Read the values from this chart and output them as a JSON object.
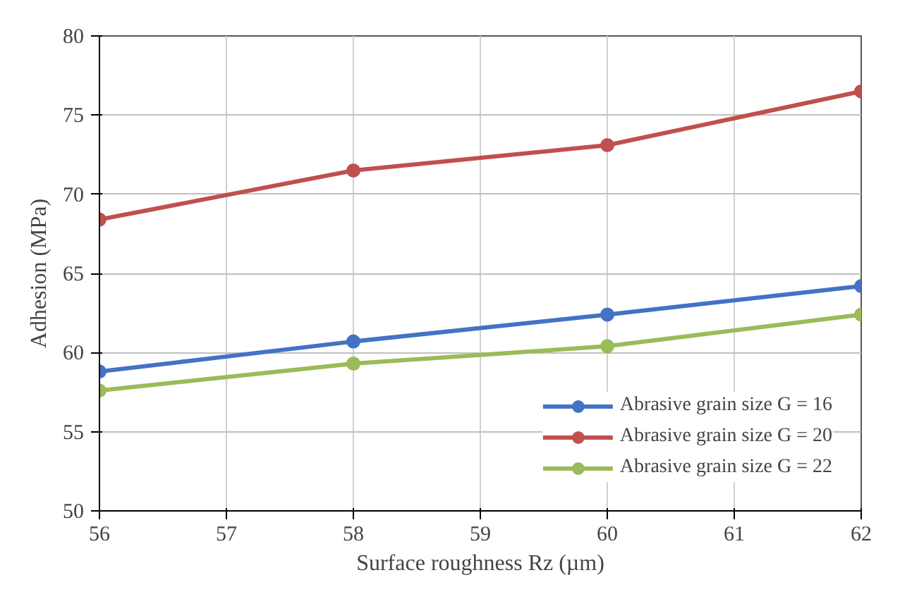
{
  "chart_data": {
    "type": "line",
    "xlabel": "Surface roughness Rz (µm)",
    "ylabel": "Adhesion (MPa)",
    "x": [
      56,
      58,
      60,
      62
    ],
    "series": [
      {
        "name": "Abrasive grain size G = 16",
        "color": "#4472c4",
        "values": [
          58.8,
          60.7,
          62.4,
          64.2
        ]
      },
      {
        "name": "Abrasive grain size G = 20",
        "color": "#c0504d",
        "values": [
          68.4,
          71.5,
          73.1,
          76.5
        ]
      },
      {
        "name": "Abrasive grain size G = 22",
        "color": "#9bbb59",
        "values": [
          57.6,
          59.3,
          60.4,
          62.4
        ]
      }
    ],
    "xlim": [
      56,
      62
    ],
    "xticks": [
      56,
      57,
      58,
      59,
      60,
      61,
      62
    ],
    "ylim": [
      50,
      80
    ],
    "yticks": [
      50,
      55,
      60,
      65,
      70,
      75,
      80
    ],
    "grid": true,
    "legend": "bottom right",
    "marker": "circle",
    "line_style": "solid"
  }
}
